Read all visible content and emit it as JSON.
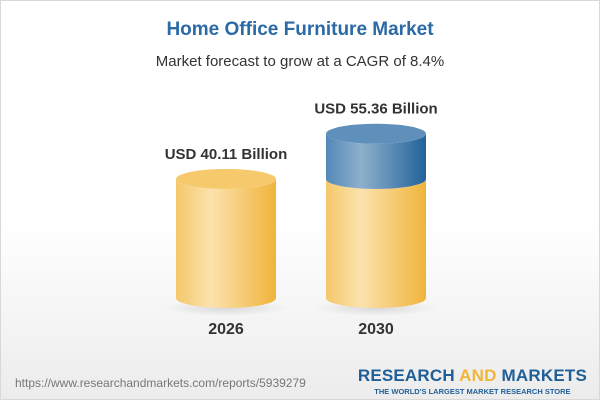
{
  "chart_data": {
    "type": "bar",
    "style": "3d-cylinder",
    "title": "Home Office Furniture Market",
    "subtitle": "Market forecast to grow at a CAGR of 8.4%",
    "categories": [
      "2026",
      "2030"
    ],
    "values": [
      40.11,
      55.36
    ],
    "data_labels": [
      "USD 40.11 Billion",
      "USD 55.36 Billion"
    ],
    "unit": "USD Billion",
    "grid": false,
    "colors": {
      "base": "#f5c560",
      "growth": "#3f7db3",
      "title": "#2b6aa6"
    }
  },
  "footer": {
    "url": "https://www.researchandmarkets.com/reports/5939279",
    "logo_word1": "RESEARCH",
    "logo_word2": "AND",
    "logo_word3": "MARKETS",
    "tagline": "THE WORLD'S LARGEST MARKET RESEARCH STORE"
  }
}
